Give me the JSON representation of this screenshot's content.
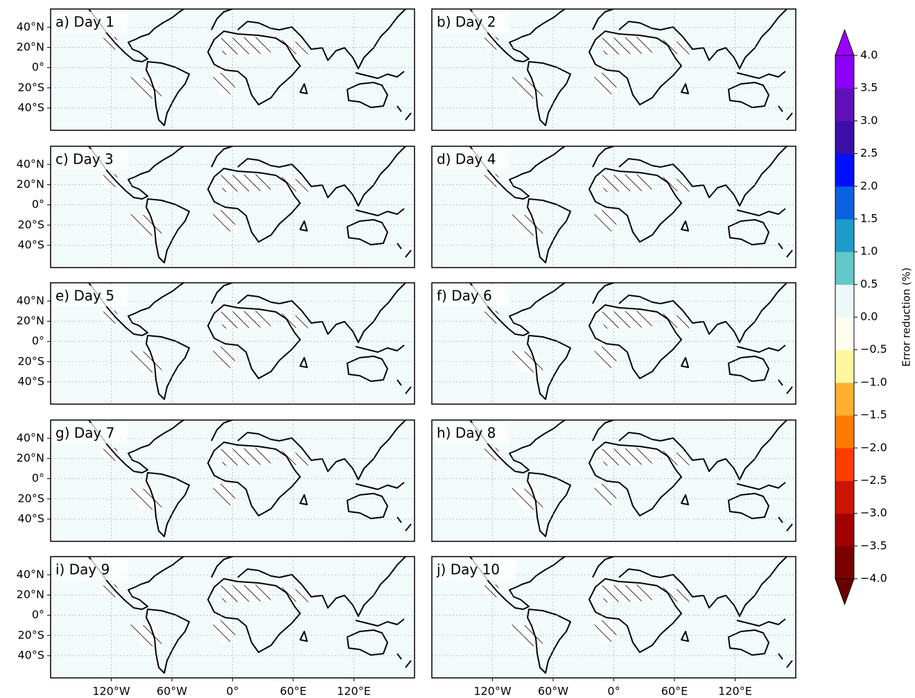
{
  "panels": [
    {
      "title": "a) Day 1"
    },
    {
      "title": "b) Day 2"
    },
    {
      "title": "c) Day 3"
    },
    {
      "title": "d) Day 4"
    },
    {
      "title": "e) Day 5"
    },
    {
      "title": "f) Day 6"
    },
    {
      "title": "g) Day 7"
    },
    {
      "title": "h) Day 8"
    },
    {
      "title": "i) Day 9"
    },
    {
      "title": "j) Day 10"
    }
  ],
  "map": {
    "lon_range": [
      -180,
      180
    ],
    "lat_range": [
      -62,
      58
    ],
    "lat_ticks": [
      {
        "value": 40,
        "label": "40°N"
      },
      {
        "value": 20,
        "label": "20°N"
      },
      {
        "value": 0,
        "label": "0°"
      },
      {
        "value": -20,
        "label": "20°S"
      },
      {
        "value": -40,
        "label": "40°S"
      }
    ],
    "lon_ticks": [
      {
        "value": -120,
        "label": "120°W"
      },
      {
        "value": -60,
        "label": "60°W"
      },
      {
        "value": 0,
        "label": "0°"
      },
      {
        "value": 60,
        "label": "60°E"
      },
      {
        "value": 120,
        "label": "120°E"
      }
    ]
  },
  "colorbar": {
    "label": "Error reduction (%)",
    "ticks": [
      {
        "value": -4,
        "label": "−4.0"
      },
      {
        "value": -3.5,
        "label": "−3.5"
      },
      {
        "value": -3,
        "label": "−3.0"
      },
      {
        "value": -2.5,
        "label": "−2.5"
      },
      {
        "value": -2,
        "label": "−2.0"
      },
      {
        "value": -1.5,
        "label": "−1.5"
      },
      {
        "value": -1,
        "label": "−1.0"
      },
      {
        "value": -0.5,
        "label": "−0.5"
      },
      {
        "value": 0,
        "label": "0.0"
      },
      {
        "value": 0.5,
        "label": "0.5"
      },
      {
        "value": 1,
        "label": "1.0"
      },
      {
        "value": 1.5,
        "label": "1.5"
      },
      {
        "value": 2,
        "label": "2.0"
      },
      {
        "value": 2.5,
        "label": "2.5"
      },
      {
        "value": 3,
        "label": "3.0"
      },
      {
        "value": 3.5,
        "label": "3.5"
      },
      {
        "value": 4,
        "label": "4.0"
      }
    ],
    "colors": [
      "#7a0000",
      "#a30000",
      "#cc1500",
      "#ff3c00",
      "#ff7a00",
      "#ffb030",
      "#fff7a0",
      "#fffdf0",
      "#eef8f8",
      "#62c8c8",
      "#1e9bc8",
      "#0a62e0",
      "#0010ff",
      "#3a0fa8",
      "#6010b8",
      "#8c00f5"
    ],
    "extend_colors": [
      "#6b0000",
      "#9a00ff"
    ]
  }
}
